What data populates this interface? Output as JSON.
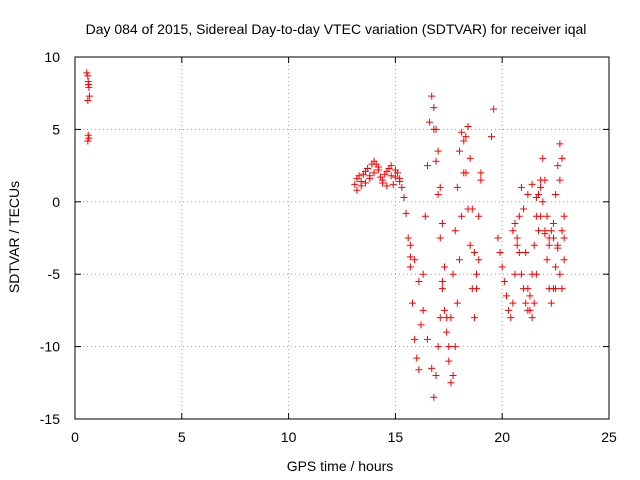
{
  "chart_data": {
    "type": "scatter",
    "title": "Day 084 of 2015, Sidereal Day-to-day VTEC variation (SDTVAR) for receiver iqal",
    "xlabel": "GPS time / hours",
    "ylabel": "SDTVAR / TECUs",
    "xlim": [
      0,
      25
    ],
    "ylim": [
      -15,
      10
    ],
    "x_ticks": [
      0,
      5,
      10,
      15,
      20,
      25
    ],
    "y_ticks": [
      -15,
      -10,
      -5,
      0,
      5,
      10
    ],
    "x_tick_labels": [
      "0",
      "5",
      "10",
      "15",
      "20",
      "25"
    ],
    "y_tick_labels": [
      "-15",
      "-10",
      "-5",
      "0",
      "5",
      "10"
    ],
    "grid": true,
    "marker": "+",
    "color": "#ff0000",
    "series": [
      {
        "name": "SDTVAR",
        "x": [
          0.55,
          0.6,
          0.62,
          0.65,
          0.68,
          0.6,
          0.62,
          0.65,
          0.6,
          0.63,
          13.1,
          13.2,
          13.3,
          13.4,
          13.5,
          13.6,
          13.7,
          13.8,
          13.9,
          14.0,
          14.1,
          14.2,
          14.3,
          14.4,
          14.5,
          14.6,
          14.7,
          14.8,
          14.9,
          15.0,
          15.1,
          15.2,
          15.3,
          15.4,
          15.5,
          15.6,
          15.7,
          13.2,
          13.4,
          13.6,
          13.8,
          14.0,
          14.2,
          14.4,
          14.6,
          14.8,
          15.0,
          15.2,
          15.7,
          15.8,
          15.9,
          16.0,
          16.1,
          16.2,
          16.3,
          16.4,
          16.5,
          16.6,
          16.7,
          16.8,
          16.9,
          17.0,
          17.1,
          17.2,
          17.3,
          17.4,
          17.5,
          17.6,
          17.7,
          17.8,
          17.9,
          18.0,
          18.1,
          18.2,
          18.3,
          18.4,
          18.5,
          18.6,
          18.7,
          18.8,
          18.9,
          19.0,
          16.8,
          16.9,
          17.0,
          17.1,
          17.2,
          17.3,
          17.4,
          17.5,
          17.6,
          17.7,
          17.8,
          17.9,
          18.0,
          18.1,
          18.2,
          18.3,
          18.4,
          18.5,
          18.6,
          18.7,
          18.8,
          18.9,
          19.0,
          15.7,
          15.9,
          16.1,
          16.3,
          16.5,
          16.7,
          16.8,
          16.9,
          17.0,
          17.1,
          17.2,
          17.3,
          19.5,
          19.6,
          19.8,
          19.9,
          20.0,
          20.1,
          20.2,
          20.3,
          20.4,
          20.5,
          20.6,
          20.7,
          20.8,
          20.9,
          21.0,
          21.1,
          21.2,
          21.3,
          21.4,
          21.5,
          21.6,
          21.7,
          21.8,
          21.9,
          22.0,
          22.1,
          22.2,
          22.3,
          22.4,
          22.5,
          22.6,
          22.7,
          22.8,
          22.9,
          20.5,
          20.6,
          20.7,
          20.8,
          20.9,
          21.0,
          21.1,
          21.2,
          21.3,
          21.4,
          21.5,
          21.6,
          21.7,
          21.8,
          21.9,
          22.0,
          22.1,
          22.2,
          22.3,
          22.4,
          22.5,
          22.6,
          22.7,
          22.8,
          22.9,
          21.2,
          21.4,
          21.6,
          21.8,
          22.0,
          22.2,
          22.4,
          22.6,
          22.8,
          22.9,
          22.5,
          22.7
        ],
        "y": [
          8.9,
          8.7,
          8.3,
          7.9,
          7.3,
          7.0,
          4.6,
          4.4,
          4.2,
          8.1,
          1.2,
          1.6,
          1.8,
          1.4,
          1.9,
          2.1,
          2.3,
          1.8,
          2.6,
          2.8,
          2.6,
          2.2,
          1.7,
          1.5,
          1.9,
          2.1,
          2.3,
          1.8,
          1.2,
          1.7,
          2.0,
          1.6,
          1.0,
          0.3,
          -0.8,
          -2.5,
          -4.5,
          0.8,
          1.1,
          1.3,
          1.6,
          2.0,
          2.4,
          1.3,
          1.1,
          2.5,
          2.2,
          1.4,
          -3.8,
          -7.0,
          -9.5,
          -10.8,
          -11.6,
          -8.5,
          -5.0,
          -1.0,
          2.5,
          5.5,
          7.3,
          5.0,
          2.8,
          0.5,
          -2.5,
          -5.5,
          -7.5,
          -9.0,
          -10.0,
          -8.0,
          -5.0,
          -2.0,
          1.0,
          3.5,
          4.8,
          4.2,
          2.0,
          -0.5,
          -3.0,
          -6.0,
          -8.0,
          -5.0,
          -1.0,
          2.0,
          6.5,
          5.0,
          3.5,
          1.0,
          -1.5,
          -4.5,
          -8.0,
          -11.0,
          -12.5,
          -12.0,
          -10.0,
          -7.0,
          -4.0,
          -1.0,
          2.0,
          4.5,
          5.2,
          3.0,
          -0.5,
          -3.5,
          -6.0,
          -4.0,
          1.5,
          -3.0,
          -4.0,
          -5.5,
          -7.5,
          -9.5,
          -11.5,
          -13.5,
          -12.0,
          -10.0,
          -8.0,
          -6.0,
          -4.5,
          4.5,
          6.4,
          -2.5,
          -3.5,
          -4.5,
          -5.5,
          -6.5,
          -7.5,
          -8.0,
          -7.0,
          -5.0,
          -3.0,
          -1.0,
          1.0,
          -0.5,
          -3.5,
          -6.0,
          -7.5,
          -8.0,
          -7.0,
          -5.0,
          -2.0,
          1.0,
          3.0,
          1.5,
          -1.0,
          -2.5,
          -2.0,
          -1.5,
          0.5,
          2.5,
          4.0,
          3.0,
          -2.5,
          -2.0,
          -1.5,
          -2.5,
          -3.5,
          -5.0,
          -6.0,
          -7.0,
          -7.5,
          -6.5,
          -5.0,
          -3.0,
          -1.0,
          0.5,
          1.5,
          0.0,
          -2.0,
          -4.0,
          -6.0,
          -7.0,
          -6.0,
          -4.5,
          -3.0,
          -5.0,
          -6.0,
          -4.0,
          0.5,
          1.2,
          0.3,
          -1.0,
          -2.2,
          -3.0,
          -2.5,
          -3.2,
          -2.0,
          -1.0,
          -6.0,
          1.5
        ]
      }
    ]
  }
}
